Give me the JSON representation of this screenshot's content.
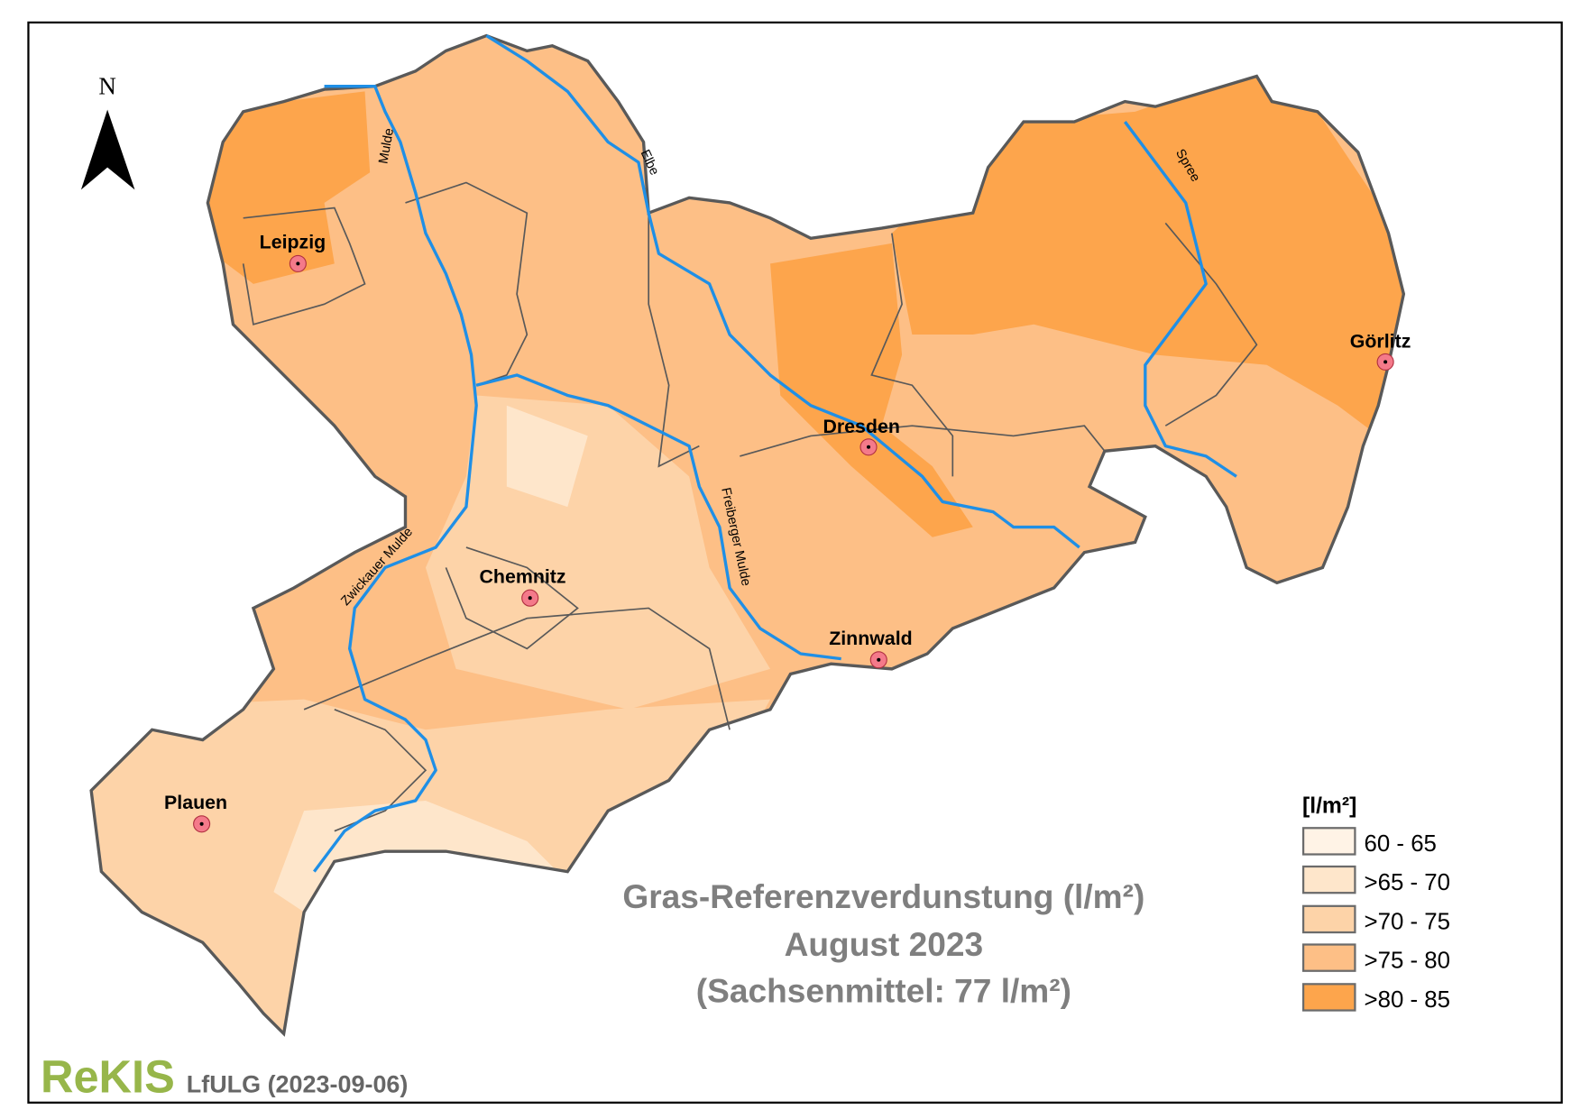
{
  "north_arrow": {
    "label": "N"
  },
  "title": {
    "line1": "Gras-Referenzverdunstung (l/m²)",
    "line2": "August 2023",
    "line3": "(Sachsenmittel: 77 l/m²)"
  },
  "legend": {
    "title": "[l/m²]",
    "items": [
      {
        "label": "60 - 65",
        "color": "#fff3e6"
      },
      {
        "label": ">65 - 70",
        "color": "#fee6cb"
      },
      {
        "label": ">70 - 75",
        "color": "#fdd3a8"
      },
      {
        "label": ">75 - 80",
        "color": "#fdbf86"
      },
      {
        "label": ">80 - 85",
        "color": "#fda54c"
      }
    ]
  },
  "cities": [
    {
      "name": "Leipzig"
    },
    {
      "name": "Dresden"
    },
    {
      "name": "Görlitz"
    },
    {
      "name": "Chemnitz"
    },
    {
      "name": "Zinnwald"
    },
    {
      "name": "Plauen"
    }
  ],
  "rivers": [
    {
      "name": "Mulde"
    },
    {
      "name": "Elbe"
    },
    {
      "name": "Spree"
    },
    {
      "name": "Freiberger Mulde"
    },
    {
      "name": "Zwickauer Mulde"
    }
  ],
  "footer": {
    "logo": "ReKIS",
    "credit": "LfULG (2023-09-06)"
  },
  "colors": {
    "river": "#1f8fe6",
    "border": "#595959",
    "logo": "#97b64a",
    "title": "#7f7f7f",
    "city_marker": "#f47a8a"
  }
}
